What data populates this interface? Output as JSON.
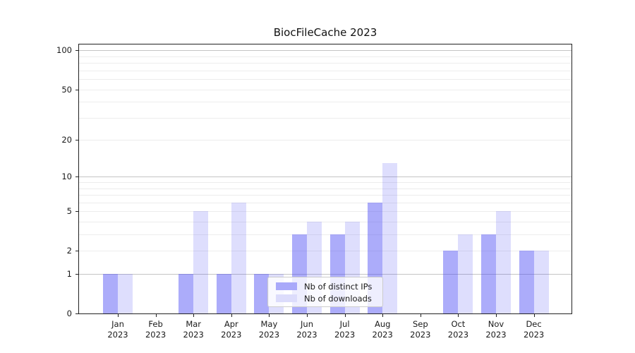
{
  "title": "BiocFileCache 2023",
  "chart_data": {
    "type": "bar",
    "title": "BiocFileCache 2023",
    "xlabel": "",
    "ylabel": "",
    "y_scale": "log1p",
    "ylim": [
      0,
      111
    ],
    "categories_month": [
      "Jan",
      "Feb",
      "Mar",
      "Apr",
      "May",
      "Jun",
      "Jul",
      "Aug",
      "Sep",
      "Oct",
      "Nov",
      "Dec"
    ],
    "categories_year": "2023",
    "series": [
      {
        "name": "Nb of distinct IPs",
        "color": "rgba(72,72,244,0.45)",
        "swatch_color": "#a9a9fa",
        "values": [
          1,
          0,
          1,
          1,
          1,
          3,
          3,
          6,
          0,
          2,
          3,
          2
        ]
      },
      {
        "name": "Nb of downloads",
        "color": "rgba(72,72,244,0.18)",
        "swatch_color": "#dcdcfb",
        "values": [
          1,
          0,
          5,
          6,
          1,
          4,
          4,
          13,
          0,
          3,
          5,
          2
        ]
      }
    ],
    "y_ticks": [
      0,
      1,
      2,
      5,
      10,
      20,
      50,
      100
    ],
    "y_tick_labels": [
      "0",
      "1",
      "2",
      "5",
      "10",
      "20",
      "50",
      "100"
    ],
    "y_major_gridlines": [
      1,
      10,
      100
    ],
    "y_minor_gridlines": [
      2,
      3,
      4,
      5,
      6,
      7,
      8,
      9,
      20,
      30,
      40,
      50,
      60,
      70,
      80,
      90
    ],
    "grid": "on",
    "legend_position": "lower center"
  }
}
